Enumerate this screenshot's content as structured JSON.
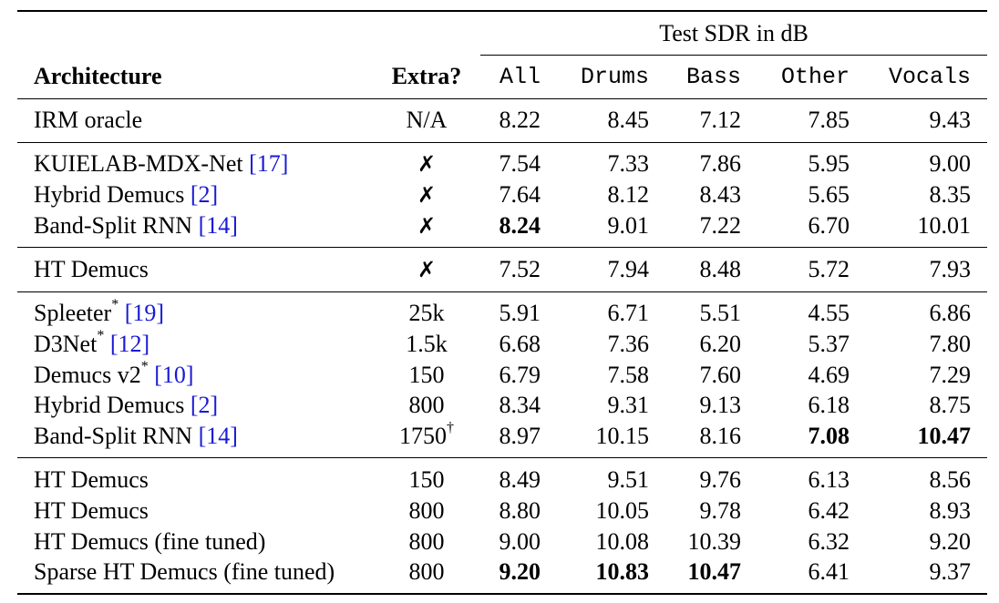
{
  "header": {
    "group_label": "Test SDR in dB",
    "architecture": "Architecture",
    "extra": "Extra?",
    "cols": [
      "All",
      "Drums",
      "Bass",
      "Other",
      "Vocals"
    ]
  },
  "rows": [
    {
      "arch": "IRM oracle",
      "cite": "",
      "star": "",
      "extra": "N/A",
      "dagger": "",
      "vals": [
        "8.22",
        "8.45",
        "7.12",
        "7.85",
        "9.43"
      ]
    },
    {
      "arch": "KUIELAB-MDX-Net",
      "cite": "17",
      "star": "",
      "extra": "✗",
      "dagger": "",
      "vals": [
        "7.54",
        "7.33",
        "7.86",
        "5.95",
        "9.00"
      ]
    },
    {
      "arch": "Hybrid Demucs",
      "cite": "2",
      "star": "",
      "extra": "✗",
      "dagger": "",
      "vals": [
        "7.64",
        "8.12",
        "8.43",
        "5.65",
        "8.35"
      ]
    },
    {
      "arch": "Band-Split RNN",
      "cite": "14",
      "star": "",
      "extra": "✗",
      "dagger": "",
      "vals": [
        "8.24",
        "9.01",
        "7.22",
        "6.70",
        "10.01"
      ]
    },
    {
      "arch": "HT Demucs",
      "cite": "",
      "star": "",
      "extra": "✗",
      "dagger": "",
      "vals": [
        "7.52",
        "7.94",
        "8.48",
        "5.72",
        "7.93"
      ]
    },
    {
      "arch": "Spleeter",
      "cite": "19",
      "star": "*",
      "extra": "25k",
      "dagger": "",
      "vals": [
        "5.91",
        "6.71",
        "5.51",
        "4.55",
        "6.86"
      ]
    },
    {
      "arch": "D3Net",
      "cite": "12",
      "star": "*",
      "extra": "1.5k",
      "dagger": "",
      "vals": [
        "6.68",
        "7.36",
        "6.20",
        "5.37",
        "7.80"
      ]
    },
    {
      "arch": "Demucs v2",
      "cite": "10",
      "star": "*",
      "extra": "150",
      "dagger": "",
      "vals": [
        "6.79",
        "7.58",
        "7.60",
        "4.69",
        "7.29"
      ]
    },
    {
      "arch": "Hybrid Demucs",
      "cite": "2",
      "star": "",
      "extra": "800",
      "dagger": "",
      "vals": [
        "8.34",
        "9.31",
        "9.13",
        "6.18",
        "8.75"
      ]
    },
    {
      "arch": "Band-Split RNN",
      "cite": "14",
      "star": "",
      "extra": "1750",
      "dagger": "†",
      "vals": [
        "8.97",
        "10.15",
        "8.16",
        "7.08",
        "10.47"
      ]
    },
    {
      "arch": "HT Demucs",
      "cite": "",
      "star": "",
      "extra": "150",
      "dagger": "",
      "vals": [
        "8.49",
        "9.51",
        "9.76",
        "6.13",
        "8.56"
      ]
    },
    {
      "arch": "HT Demucs",
      "cite": "",
      "star": "",
      "extra": "800",
      "dagger": "",
      "vals": [
        "8.80",
        "10.05",
        "9.78",
        "6.42",
        "8.93"
      ]
    },
    {
      "arch": "HT Demucs (fine tuned)",
      "cite": "",
      "star": "",
      "extra": "800",
      "dagger": "",
      "vals": [
        "9.00",
        "10.08",
        "10.39",
        "6.32",
        "9.20"
      ]
    },
    {
      "arch": "Sparse HT Demucs (fine tuned)",
      "cite": "",
      "star": "",
      "extra": "800",
      "dagger": "",
      "vals": [
        "9.20",
        "10.83",
        "10.47",
        "6.41",
        "9.37"
      ]
    }
  ],
  "bold_cells": [
    [
      3,
      0
    ],
    [
      9,
      3
    ],
    [
      9,
      4
    ],
    [
      13,
      0
    ],
    [
      13,
      1
    ],
    [
      13,
      2
    ]
  ]
}
